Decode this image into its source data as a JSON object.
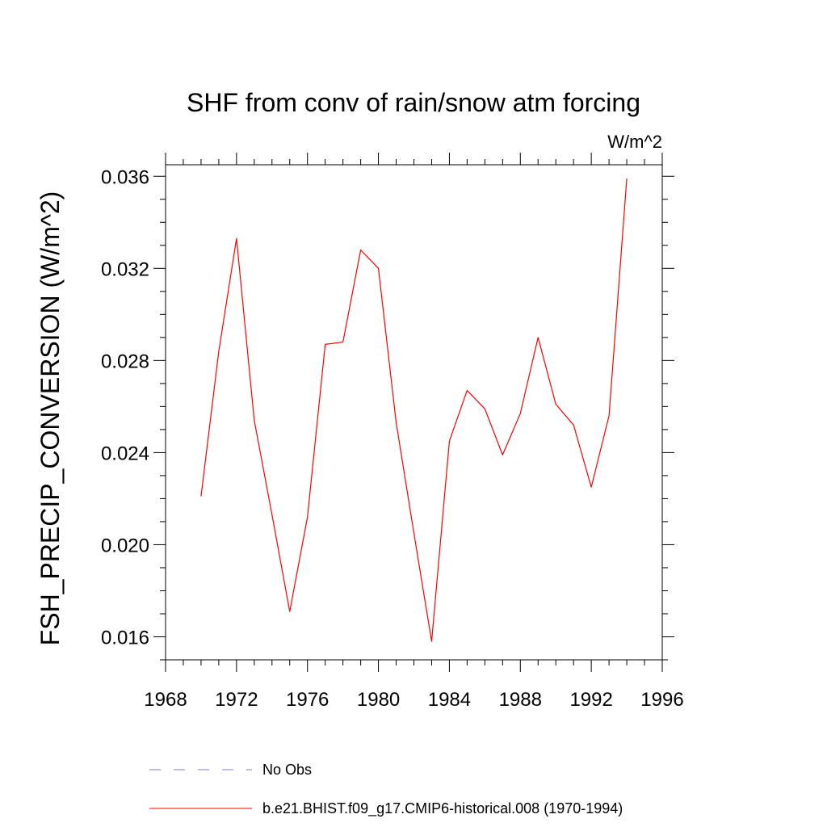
{
  "chart_data": {
    "type": "line",
    "title": "SHF from conv of rain/snow atm forcing",
    "units_label": "W/m^2",
    "ylabel": "FSH_PRECIP_CONVERSION  (W/m^2)",
    "xlabel": "",
    "xlim": [
      1968,
      1996
    ],
    "ylim": [
      0.015,
      0.0365
    ],
    "x_ticks": [
      1968,
      1972,
      1976,
      1980,
      1984,
      1988,
      1992,
      1996
    ],
    "x_tick_labels": [
      "1968",
      "1972",
      "1976",
      "1980",
      "1984",
      "1988",
      "1992",
      "1996"
    ],
    "y_ticks": [
      0.016,
      0.02,
      0.024,
      0.028,
      0.032,
      0.036
    ],
    "y_tick_labels": [
      "0.016",
      "0.020",
      "0.024",
      "0.028",
      "0.032",
      "0.036"
    ],
    "grid": false,
    "legend_position": "bottom",
    "series": [
      {
        "name": "b.e21.BHIST.f09_g17.CMIP6-historical.008 (1970-1994)",
        "color": "#ff0000",
        "style": "solid",
        "x": [
          1970,
          1971,
          1972,
          1973,
          1974,
          1975,
          1976,
          1977,
          1978,
          1979,
          1980,
          1981,
          1982,
          1983,
          1984,
          1985,
          1986,
          1987,
          1988,
          1989,
          1990,
          1991,
          1992,
          1993,
          1994
        ],
        "y": [
          0.0221,
          0.0284,
          0.0333,
          0.0254,
          0.0213,
          0.0171,
          0.0212,
          0.0287,
          0.0288,
          0.0328,
          0.032,
          0.0253,
          0.0205,
          0.0158,
          0.0245,
          0.0267,
          0.0259,
          0.0239,
          0.0257,
          0.029,
          0.0261,
          0.0252,
          0.0225,
          0.0256,
          0.0359
        ]
      }
    ],
    "legend": [
      {
        "label": "No Obs",
        "color": "#7a7ac8",
        "style": "dashed"
      },
      {
        "label": "b.e21.BHIST.f09_g17.CMIP6-historical.008 (1970-1994)",
        "color": "#ff0000",
        "style": "solid"
      }
    ]
  }
}
